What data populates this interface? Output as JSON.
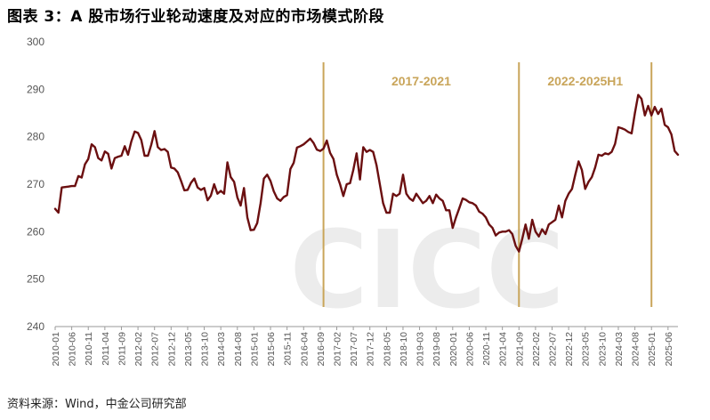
{
  "title": "图表 3：A 股市场行业轮动速度及对应的市场模式阶段",
  "source": "资料来源：Wind，中金公司研究部",
  "colors": {
    "line": "#6b0f10",
    "divider": "#c9a55a",
    "period_text": "#c9a55a",
    "watermark": "#ececec"
  },
  "watermark": "CICC 中金公司",
  "chart_data": {
    "type": "line",
    "ylim": [
      240,
      300
    ],
    "yticks": [
      240,
      250,
      260,
      270,
      280,
      290,
      300
    ],
    "xlim": [
      "2010-01",
      "2025-09"
    ],
    "xticks": [
      "2010-01",
      "2010-06",
      "2010-11",
      "2011-04",
      "2011-09",
      "2012-02",
      "2012-07",
      "2012-12",
      "2013-05",
      "2013-10",
      "2014-03",
      "2014-08",
      "2015-01",
      "2015-06",
      "2015-11",
      "2016-04",
      "2016-09",
      "2017-02",
      "2017-07",
      "2017-12",
      "2018-05",
      "2018-10",
      "2019-03",
      "2019-08",
      "2020-01",
      "2020-06",
      "2020-11",
      "2021-04",
      "2021-09",
      "2022-02",
      "2022-07",
      "2022-12",
      "2023-05",
      "2023-10",
      "2024-03",
      "2024-08",
      "2025-01",
      "2025-06"
    ],
    "grid": false,
    "dividers": [
      "2016-10",
      "2021-09",
      "2025-01"
    ],
    "period_labels": [
      "2017-2021",
      "2022-2025H1"
    ],
    "series": [
      {
        "points": [
          [
            "2010-01",
            264.8
          ],
          [
            "2010-02",
            264.0
          ],
          [
            "2010-03",
            269.3
          ],
          [
            "2010-04",
            269.4
          ],
          [
            "2010-05",
            269.5
          ],
          [
            "2010-06",
            269.6
          ],
          [
            "2010-07",
            269.6
          ],
          [
            "2010-08",
            271.7
          ],
          [
            "2010-09",
            271.4
          ],
          [
            "2010-10",
            274.2
          ],
          [
            "2010-11",
            275.3
          ],
          [
            "2010-12",
            278.4
          ],
          [
            "2011-01",
            277.8
          ],
          [
            "2011-02",
            275.5
          ],
          [
            "2011-03",
            275.0
          ],
          [
            "2011-04",
            276.9
          ],
          [
            "2011-05",
            276.4
          ],
          [
            "2011-06",
            273.3
          ],
          [
            "2011-07",
            275.5
          ],
          [
            "2011-08",
            275.8
          ],
          [
            "2011-09",
            276.0
          ],
          [
            "2011-10",
            278.0
          ],
          [
            "2011-11",
            276.2
          ],
          [
            "2011-12",
            279.0
          ],
          [
            "2012-01",
            281.1
          ],
          [
            "2012-02",
            280.8
          ],
          [
            "2012-03",
            279.3
          ],
          [
            "2012-04",
            276.0
          ],
          [
            "2012-05",
            276.0
          ],
          [
            "2012-06",
            278.3
          ],
          [
            "2012-07",
            281.2
          ],
          [
            "2012-08",
            277.8
          ],
          [
            "2012-09",
            277.2
          ],
          [
            "2012-10",
            277.4
          ],
          [
            "2012-11",
            276.8
          ],
          [
            "2012-12",
            273.5
          ],
          [
            "2013-01",
            273.3
          ],
          [
            "2013-02",
            272.5
          ],
          [
            "2013-03",
            270.7
          ],
          [
            "2013-04",
            268.7
          ],
          [
            "2013-05",
            268.8
          ],
          [
            "2013-06",
            270.3
          ],
          [
            "2013-07",
            271.2
          ],
          [
            "2013-08",
            269.3
          ],
          [
            "2013-09",
            268.8
          ],
          [
            "2013-10",
            269.2
          ],
          [
            "2013-11",
            266.6
          ],
          [
            "2013-12",
            267.6
          ],
          [
            "2014-01",
            270.0
          ],
          [
            "2014-02",
            268.0
          ],
          [
            "2014-03",
            268.6
          ],
          [
            "2014-04",
            268.0
          ],
          [
            "2014-05",
            274.6
          ],
          [
            "2014-06",
            271.5
          ],
          [
            "2014-07",
            270.5
          ],
          [
            "2014-08",
            267.2
          ],
          [
            "2014-09",
            265.5
          ],
          [
            "2014-10",
            269.2
          ],
          [
            "2014-11",
            263.0
          ],
          [
            "2014-12",
            260.3
          ],
          [
            "2015-01",
            260.4
          ],
          [
            "2015-02",
            261.8
          ],
          [
            "2015-03",
            266.0
          ],
          [
            "2015-04",
            271.2
          ],
          [
            "2015-05",
            272.0
          ],
          [
            "2015-06",
            270.7
          ],
          [
            "2015-07",
            268.5
          ],
          [
            "2015-08",
            267.0
          ],
          [
            "2015-09",
            266.5
          ],
          [
            "2015-10",
            267.3
          ],
          [
            "2015-11",
            267.7
          ],
          [
            "2015-12",
            273.2
          ],
          [
            "2016-01",
            274.5
          ],
          [
            "2016-02",
            277.7
          ],
          [
            "2016-03",
            278.0
          ],
          [
            "2016-04",
            278.4
          ],
          [
            "2016-05",
            279.0
          ],
          [
            "2016-06",
            279.6
          ],
          [
            "2016-07",
            278.7
          ],
          [
            "2016-08",
            277.3
          ],
          [
            "2016-09",
            277.0
          ],
          [
            "2016-10",
            277.5
          ],
          [
            "2016-11",
            279.2
          ],
          [
            "2016-12",
            276.6
          ],
          [
            "2017-01",
            275.3
          ],
          [
            "2017-02",
            272.0
          ],
          [
            "2017-03",
            270.0
          ],
          [
            "2017-04",
            267.5
          ],
          [
            "2017-05",
            270.0
          ],
          [
            "2017-06",
            270.2
          ],
          [
            "2017-07",
            273.0
          ],
          [
            "2017-08",
            276.5
          ],
          [
            "2017-09",
            271.0
          ],
          [
            "2017-10",
            277.8
          ],
          [
            "2017-11",
            276.8
          ],
          [
            "2017-12",
            277.2
          ],
          [
            "2018-01",
            276.8
          ],
          [
            "2018-02",
            274.0
          ],
          [
            "2018-03",
            270.0
          ],
          [
            "2018-04",
            266.0
          ],
          [
            "2018-05",
            264.0
          ],
          [
            "2018-06",
            264.0
          ],
          [
            "2018-07",
            268.0
          ],
          [
            "2018-08",
            267.5
          ],
          [
            "2018-09",
            268.0
          ],
          [
            "2018-10",
            272.0
          ],
          [
            "2018-11",
            268.0
          ],
          [
            "2018-12",
            267.0
          ],
          [
            "2019-01",
            266.5
          ],
          [
            "2019-02",
            268.0
          ],
          [
            "2019-03",
            267.0
          ],
          [
            "2019-04",
            266.0
          ],
          [
            "2019-05",
            266.5
          ],
          [
            "2019-06",
            267.5
          ],
          [
            "2019-07",
            266.0
          ],
          [
            "2019-08",
            267.8
          ],
          [
            "2019-09",
            267.0
          ],
          [
            "2019-10",
            266.5
          ],
          [
            "2019-11",
            264.5
          ],
          [
            "2019-12",
            264.5
          ],
          [
            "2020-01",
            260.8
          ],
          [
            "2020-02",
            263.0
          ],
          [
            "2020-03",
            265.0
          ],
          [
            "2020-04",
            267.0
          ],
          [
            "2020-05",
            266.7
          ],
          [
            "2020-06",
            266.2
          ],
          [
            "2020-07",
            266.0
          ],
          [
            "2020-08",
            265.5
          ],
          [
            "2020-09",
            264.2
          ],
          [
            "2020-10",
            263.8
          ],
          [
            "2020-11",
            263.0
          ],
          [
            "2020-12",
            261.5
          ],
          [
            "2021-01",
            260.8
          ],
          [
            "2021-02",
            259.2
          ],
          [
            "2021-03",
            259.8
          ],
          [
            "2021-04",
            260.0
          ],
          [
            "2021-05",
            260.0
          ],
          [
            "2021-06",
            260.3
          ],
          [
            "2021-07",
            259.5
          ],
          [
            "2021-08",
            257.0
          ],
          [
            "2021-09",
            255.8
          ],
          [
            "2021-10",
            258.5
          ],
          [
            "2021-11",
            261.5
          ],
          [
            "2021-12",
            258.5
          ],
          [
            "2022-01",
            262.5
          ],
          [
            "2022-02",
            260.0
          ],
          [
            "2022-03",
            259.0
          ],
          [
            "2022-04",
            260.5
          ],
          [
            "2022-05",
            259.5
          ],
          [
            "2022-06",
            261.5
          ],
          [
            "2022-07",
            262.0
          ],
          [
            "2022-08",
            262.5
          ],
          [
            "2022-09",
            265.5
          ],
          [
            "2022-10",
            263.0
          ],
          [
            "2022-11",
            266.5
          ],
          [
            "2022-12",
            268.0
          ],
          [
            "2023-01",
            269.0
          ],
          [
            "2023-02",
            272.0
          ],
          [
            "2023-03",
            274.8
          ],
          [
            "2023-04",
            273.0
          ],
          [
            "2023-05",
            269.0
          ],
          [
            "2023-06",
            270.5
          ],
          [
            "2023-07",
            271.5
          ],
          [
            "2023-08",
            273.5
          ],
          [
            "2023-09",
            276.2
          ],
          [
            "2023-10",
            276.0
          ],
          [
            "2023-11",
            276.5
          ],
          [
            "2023-12",
            276.3
          ],
          [
            "2024-01",
            276.8
          ],
          [
            "2024-02",
            278.5
          ],
          [
            "2024-03",
            282.0
          ],
          [
            "2024-04",
            281.8
          ],
          [
            "2024-05",
            281.5
          ],
          [
            "2024-06",
            281.0
          ],
          [
            "2024-07",
            280.7
          ],
          [
            "2024-08",
            285.0
          ],
          [
            "2024-09",
            288.8
          ],
          [
            "2024-10",
            288.0
          ],
          [
            "2024-11",
            284.5
          ],
          [
            "2024-12",
            286.5
          ],
          [
            "2025-01",
            284.5
          ],
          [
            "2025-02",
            286.3
          ],
          [
            "2025-03",
            284.8
          ],
          [
            "2025-04",
            285.9
          ],
          [
            "2025-05",
            282.5
          ],
          [
            "2025-06",
            282.0
          ],
          [
            "2025-07",
            280.5
          ],
          [
            "2025-08",
            277.0
          ],
          [
            "2025-09",
            276.2
          ]
        ]
      }
    ]
  }
}
